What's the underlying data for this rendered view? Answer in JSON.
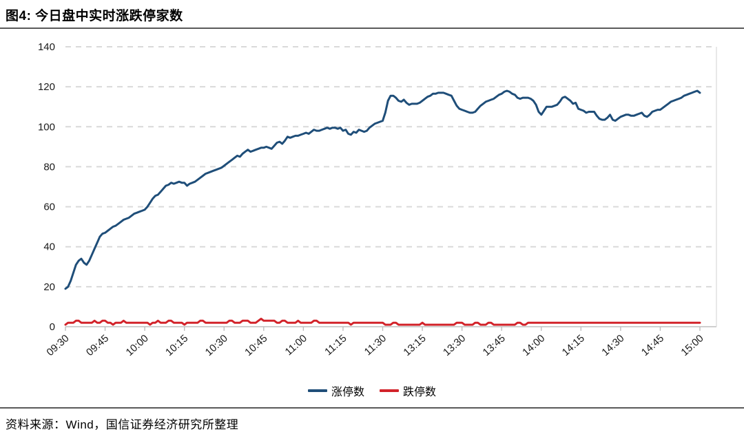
{
  "title": "图4: 今日盘中实时涨跌停家数",
  "source": "资料来源：Wind，国信证券经济研究所整理",
  "colors": {
    "limit_up": "#1f4e79",
    "limit_down": "#d2232a",
    "grid": "#d9d9d9",
    "axis": "#bfbfbf",
    "tick_text": "#1a1a1a"
  },
  "chart_data": {
    "type": "line",
    "title": "图4: 今日盘中实时涨跌停家数",
    "xlabel": "",
    "ylabel": "",
    "ylim": [
      0,
      140
    ],
    "y_ticks": [
      0,
      20,
      40,
      60,
      80,
      100,
      120,
      140
    ],
    "grid": "dashed-horizontal",
    "legend_position": "bottom-center",
    "x_minutes_total": 240,
    "x_ticks": [
      {
        "t": 0,
        "label": "09:30"
      },
      {
        "t": 15,
        "label": "09:45"
      },
      {
        "t": 30,
        "label": "10:00"
      },
      {
        "t": 45,
        "label": "10:15"
      },
      {
        "t": 60,
        "label": "10:30"
      },
      {
        "t": 75,
        "label": "10:45"
      },
      {
        "t": 90,
        "label": "11:00"
      },
      {
        "t": 105,
        "label": "11:15"
      },
      {
        "t": 120,
        "label": "11:30"
      },
      {
        "t": 135,
        "label": "13:15"
      },
      {
        "t": 150,
        "label": "13:30"
      },
      {
        "t": 165,
        "label": "13:45"
      },
      {
        "t": 180,
        "label": "14:00"
      },
      {
        "t": 195,
        "label": "14:15"
      },
      {
        "t": 210,
        "label": "14:30"
      },
      {
        "t": 225,
        "label": "14:45"
      },
      {
        "t": 240,
        "label": "15:00"
      }
    ],
    "series": [
      {
        "name": "涨停数",
        "color_key": "limit_up",
        "values": [
          19,
          20,
          23,
          27,
          31,
          33,
          34,
          32,
          31,
          33,
          36,
          39,
          42,
          45,
          46.5,
          47,
          48,
          49,
          50,
          50.5,
          51.5,
          52.5,
          53.5,
          54,
          54.5,
          55.5,
          56.5,
          57,
          57.5,
          58,
          58.5,
          60,
          62,
          64,
          65.5,
          66,
          67.5,
          69,
          70.5,
          71,
          72,
          71.5,
          72,
          72.5,
          72,
          72,
          70.5,
          71.5,
          72,
          72.5,
          73.5,
          74.5,
          75.5,
          76.5,
          77,
          77.5,
          78,
          78.5,
          79,
          79.5,
          80.5,
          81.5,
          82.5,
          83.5,
          84.5,
          85.5,
          85,
          86.5,
          87.5,
          88.5,
          87.5,
          88,
          88.5,
          89,
          89.5,
          89.5,
          90,
          89.5,
          89,
          90.5,
          92,
          92.5,
          91.5,
          93,
          95,
          94.5,
          95,
          95.5,
          95.5,
          96,
          96.5,
          97,
          96.5,
          97.5,
          98.5,
          98,
          98,
          98.5,
          99,
          99.5,
          99,
          99.5,
          99.5,
          99,
          99.5,
          98,
          98.5,
          96.5,
          96,
          97.5,
          97,
          98.5,
          98,
          97.5,
          98,
          99.5,
          100.5,
          101.5,
          102,
          102.5,
          103,
          107,
          113,
          115.5,
          115.5,
          114.5,
          113,
          112.5,
          113.5,
          112,
          111,
          111.5,
          111.5,
          111.5,
          112,
          113,
          114,
          115,
          115.5,
          116.5,
          116.5,
          117,
          117,
          117,
          116.5,
          116,
          115.5,
          113,
          110.5,
          109,
          108.5,
          108,
          107.5,
          107,
          107,
          107.5,
          109,
          110.5,
          111.5,
          112.5,
          113,
          113.5,
          114,
          115,
          116,
          116.5,
          117.5,
          118,
          117.5,
          116.5,
          116,
          114.5,
          114,
          114.5,
          114.5,
          114.5,
          114,
          113,
          111,
          107.5,
          106,
          108,
          110,
          110,
          110,
          110.5,
          111,
          112.5,
          114.5,
          115,
          114,
          113,
          111.5,
          112,
          109,
          108.5,
          108,
          107,
          107.5,
          107.5,
          107.5,
          105.5,
          104,
          103.5,
          103.5,
          104.5,
          106,
          103.5,
          103,
          104,
          105,
          105.5,
          106,
          106,
          105.5,
          105.5,
          106,
          106.5,
          107,
          105.5,
          105,
          106,
          107.5,
          108,
          108.5,
          108.5,
          109.5,
          110.5,
          111.5,
          112.5,
          113,
          113.5,
          114,
          114.5,
          115.5,
          116,
          116.5,
          117,
          117.5,
          118,
          117
        ]
      },
      {
        "name": "跌停数",
        "color_key": "limit_down",
        "values": [
          1,
          2,
          2,
          2,
          3,
          3,
          2,
          2,
          2,
          2,
          2,
          3,
          2,
          2,
          3,
          3,
          2,
          2,
          1,
          2,
          2,
          2,
          3,
          2,
          2,
          2,
          2,
          2,
          2,
          2,
          2,
          2,
          1,
          2,
          2,
          3,
          2,
          2,
          2,
          3,
          3,
          2,
          2,
          2,
          2,
          1,
          2,
          2,
          2,
          2,
          2,
          3,
          3,
          2,
          2,
          2,
          2,
          2,
          2,
          2,
          2,
          2,
          3,
          3,
          2,
          2,
          2,
          3,
          3,
          3,
          2,
          2,
          2,
          3,
          4,
          3,
          3,
          3,
          3,
          3,
          2,
          2,
          3,
          3,
          2,
          2,
          2,
          2,
          3,
          2,
          2,
          2,
          2,
          2,
          3,
          3,
          2,
          2,
          2,
          2,
          2,
          2,
          2,
          2,
          2,
          2,
          2,
          2,
          1,
          2,
          2,
          2,
          2,
          2,
          2,
          2,
          2,
          2,
          2,
          2,
          2,
          1,
          1,
          1,
          2,
          2,
          1,
          1,
          1,
          1,
          1,
          1,
          1,
          1,
          1,
          2,
          1,
          1,
          1,
          1,
          1,
          1,
          1,
          1,
          1,
          1,
          1,
          1,
          2,
          2,
          2,
          1,
          1,
          1,
          1,
          2,
          2,
          1,
          1,
          1,
          2,
          2,
          1,
          1,
          1,
          1,
          1,
          1,
          1,
          1,
          1,
          2,
          2,
          1,
          1,
          2,
          2,
          2,
          2,
          2,
          2,
          2,
          2,
          2,
          2,
          2,
          2,
          2,
          2,
          2,
          2,
          2,
          2,
          2,
          2,
          2,
          2,
          2,
          2,
          2,
          2,
          2,
          2,
          2,
          2,
          2,
          2,
          2,
          2,
          2,
          2,
          2,
          2,
          2,
          2,
          2,
          2,
          2,
          2,
          2,
          2,
          2,
          2,
          2,
          2,
          2,
          2,
          2,
          2,
          2,
          2,
          2,
          2,
          2,
          2,
          2,
          2,
          2,
          2,
          2,
          2
        ]
      }
    ]
  }
}
